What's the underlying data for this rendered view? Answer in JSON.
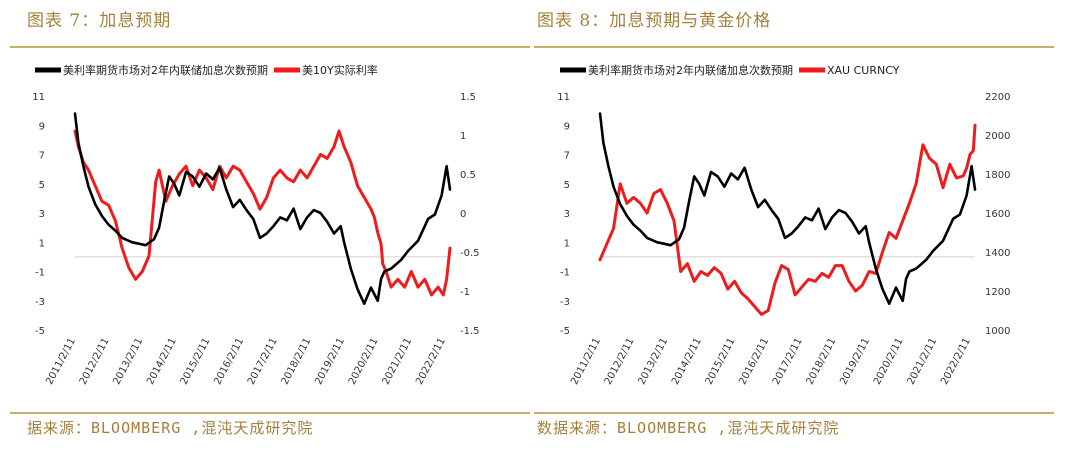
{
  "left": {
    "caption": "图表 7：加息预期",
    "source": "据来源：BLOOMBERG ,混沌天成研究院"
  },
  "right": {
    "caption": "图表 8：加息预期与黄金价格",
    "source": "数据来源：BLOOMBERG ,混沌天成研究院"
  },
  "colors": {
    "series1": "#000000",
    "series2": "#ee1c1c",
    "zero_line": "#d0d0d0"
  },
  "chart_data": [
    {
      "type": "line",
      "title": "",
      "x_tick_labels": [
        "2011/2/11",
        "2012/2/11",
        "2013/2/11",
        "2014/2/11",
        "2015/2/11",
        "2016/2/11",
        "2017/2/11",
        "2018/2/11",
        "2019/2/11",
        "2020/2/11",
        "2021/2/11",
        "2022/2/11"
      ],
      "y_left": {
        "ticks": [
          11,
          9,
          7,
          5,
          3,
          1,
          -1,
          -3,
          -5
        ],
        "range": [
          -5,
          11
        ]
      },
      "y_right": {
        "ticks": [
          "1.5",
          "1",
          "0.5",
          "0",
          "-0.5",
          "-1",
          "-1.5"
        ],
        "range": [
          -1.5,
          1.5
        ]
      },
      "zero_line_left_value": 0,
      "series": [
        {
          "name": "美利率期货市场对2年内联储加息次数预期",
          "axis": "left",
          "x": [
            2011.1,
            2011.2,
            2011.35,
            2011.5,
            2011.7,
            2011.9,
            2012.1,
            2012.3,
            2012.5,
            2012.8,
            2013.0,
            2013.2,
            2013.45,
            2013.6,
            2013.75,
            2013.9,
            2014.05,
            2014.2,
            2014.4,
            2014.6,
            2014.8,
            2015.0,
            2015.2,
            2015.4,
            2015.6,
            2015.8,
            2016.0,
            2016.2,
            2016.4,
            2016.6,
            2016.8,
            2017.0,
            2017.2,
            2017.4,
            2017.6,
            2017.8,
            2018.0,
            2018.2,
            2018.4,
            2018.6,
            2018.8,
            2019.0,
            2019.1,
            2019.3,
            2019.5,
            2019.7,
            2019.9,
            2020.1,
            2020.2,
            2020.3,
            2020.5,
            2020.8,
            2021.0,
            2021.3,
            2021.6,
            2021.8,
            2022.0,
            2022.15,
            2022.25
          ],
          "values": [
            9.8,
            7.8,
            6.2,
            4.8,
            3.6,
            2.8,
            2.2,
            1.8,
            1.3,
            1.0,
            0.9,
            0.8,
            1.2,
            2.0,
            3.8,
            5.5,
            5.0,
            4.2,
            5.8,
            5.5,
            4.8,
            5.7,
            5.3,
            6.1,
            4.6,
            3.4,
            3.9,
            3.2,
            2.6,
            1.3,
            1.6,
            2.1,
            2.7,
            2.5,
            3.3,
            1.9,
            2.7,
            3.2,
            3.0,
            2.4,
            1.6,
            2.1,
            1.0,
            -0.8,
            -2.2,
            -3.2,
            -2.1,
            -3.0,
            -1.5,
            -1.0,
            -0.8,
            -0.2,
            0.4,
            1.1,
            2.6,
            2.9,
            4.2,
            6.2,
            4.6
          ]
        },
        {
          "name": "美10Y实际利率",
          "axis": "right",
          "x": [
            2011.1,
            2011.2,
            2011.35,
            2011.5,
            2011.7,
            2011.9,
            2012.1,
            2012.3,
            2012.5,
            2012.7,
            2012.9,
            2013.1,
            2013.3,
            2013.5,
            2013.6,
            2013.8,
            2014.0,
            2014.2,
            2014.4,
            2014.6,
            2014.8,
            2015.0,
            2015.2,
            2015.4,
            2015.6,
            2015.8,
            2016.0,
            2016.2,
            2016.4,
            2016.6,
            2016.8,
            2017.0,
            2017.2,
            2017.4,
            2017.6,
            2017.8,
            2018.0,
            2018.2,
            2018.4,
            2018.6,
            2018.8,
            2018.95,
            2019.1,
            2019.3,
            2019.5,
            2019.7,
            2019.9,
            2020.0,
            2020.1,
            2020.2,
            2020.25,
            2020.35,
            2020.5,
            2020.7,
            2020.9,
            2021.1,
            2021.3,
            2021.5,
            2021.7,
            2021.9,
            2022.05,
            2022.15,
            2022.25
          ],
          "values": [
            1.05,
            0.85,
            0.65,
            0.55,
            0.35,
            0.15,
            0.1,
            -0.1,
            -0.45,
            -0.7,
            -0.85,
            -0.75,
            -0.55,
            0.4,
            0.55,
            0.15,
            0.35,
            0.5,
            0.6,
            0.35,
            0.55,
            0.45,
            0.3,
            0.6,
            0.45,
            0.6,
            0.55,
            0.4,
            0.25,
            0.05,
            0.2,
            0.45,
            0.55,
            0.45,
            0.4,
            0.55,
            0.45,
            0.6,
            0.75,
            0.7,
            0.85,
            1.05,
            0.85,
            0.65,
            0.35,
            0.2,
            0.05,
            -0.05,
            -0.25,
            -0.4,
            -0.65,
            -0.75,
            -0.95,
            -0.85,
            -0.95,
            -0.75,
            -0.95,
            -0.85,
            -1.05,
            -0.95,
            -1.05,
            -0.85,
            -0.45
          ]
        }
      ]
    },
    {
      "type": "line",
      "title": "",
      "x_tick_labels": [
        "2011/2/11",
        "2012/2/11",
        "2013/2/11",
        "2014/2/11",
        "2015/2/11",
        "2016/2/11",
        "2017/2/11",
        "2018/2/11",
        "2019/2/11",
        "2020/2/11",
        "2021/2/11",
        "2022/2/11"
      ],
      "y_left": {
        "ticks": [
          11,
          9,
          7,
          5,
          3,
          1,
          -1,
          -3,
          -5
        ],
        "range": [
          -5,
          11
        ]
      },
      "y_right": {
        "ticks": [
          "2200",
          "2000",
          "1800",
          "1600",
          "1400",
          "1200",
          "1000"
        ],
        "range": [
          1000,
          2200
        ]
      },
      "zero_line_left_value": 0,
      "series": [
        {
          "name": "美利率期货市场对2年内联储加息次数预期",
          "axis": "left",
          "x": [
            2011.1,
            2011.2,
            2011.35,
            2011.5,
            2011.7,
            2011.9,
            2012.1,
            2012.3,
            2012.5,
            2012.8,
            2013.0,
            2013.2,
            2013.45,
            2013.6,
            2013.75,
            2013.9,
            2014.05,
            2014.2,
            2014.4,
            2014.6,
            2014.8,
            2015.0,
            2015.2,
            2015.4,
            2015.6,
            2015.8,
            2016.0,
            2016.2,
            2016.4,
            2016.6,
            2016.8,
            2017.0,
            2017.2,
            2017.4,
            2017.6,
            2017.8,
            2018.0,
            2018.2,
            2018.4,
            2018.6,
            2018.8,
            2019.0,
            2019.1,
            2019.3,
            2019.5,
            2019.7,
            2019.9,
            2020.1,
            2020.2,
            2020.3,
            2020.5,
            2020.8,
            2021.0,
            2021.3,
            2021.6,
            2021.8,
            2022.0,
            2022.15,
            2022.25
          ],
          "values": [
            9.8,
            7.8,
            6.2,
            4.8,
            3.6,
            2.8,
            2.2,
            1.8,
            1.3,
            1.0,
            0.9,
            0.8,
            1.2,
            2.0,
            3.8,
            5.5,
            5.0,
            4.2,
            5.8,
            5.5,
            4.8,
            5.7,
            5.3,
            6.1,
            4.6,
            3.4,
            3.9,
            3.2,
            2.6,
            1.3,
            1.6,
            2.1,
            2.7,
            2.5,
            3.3,
            1.9,
            2.7,
            3.2,
            3.0,
            2.4,
            1.6,
            2.1,
            1.0,
            -0.8,
            -2.2,
            -3.2,
            -2.1,
            -3.0,
            -1.5,
            -1.0,
            -0.8,
            -0.2,
            0.4,
            1.1,
            2.6,
            2.9,
            4.2,
            6.2,
            4.6
          ]
        },
        {
          "name": "XAU CURNCY",
          "axis": "right",
          "x": [
            2011.1,
            2011.3,
            2011.5,
            2011.7,
            2011.9,
            2012.1,
            2012.3,
            2012.5,
            2012.7,
            2012.9,
            2013.1,
            2013.3,
            2013.5,
            2013.7,
            2013.9,
            2014.1,
            2014.3,
            2014.5,
            2014.7,
            2014.9,
            2015.1,
            2015.3,
            2015.5,
            2015.7,
            2015.9,
            2016.1,
            2016.3,
            2016.5,
            2016.7,
            2016.9,
            2017.1,
            2017.3,
            2017.5,
            2017.7,
            2017.9,
            2018.1,
            2018.3,
            2018.5,
            2018.7,
            2018.9,
            2019.1,
            2019.3,
            2019.5,
            2019.7,
            2019.9,
            2020.1,
            2020.3,
            2020.5,
            2020.6,
            2020.7,
            2020.9,
            2021.1,
            2021.3,
            2021.5,
            2021.7,
            2021.9,
            2022.0,
            2022.1,
            2022.2,
            2022.25
          ],
          "values": [
            1360,
            1440,
            1520,
            1750,
            1650,
            1680,
            1650,
            1600,
            1700,
            1720,
            1650,
            1560,
            1300,
            1340,
            1250,
            1300,
            1280,
            1320,
            1290,
            1210,
            1250,
            1190,
            1160,
            1120,
            1080,
            1100,
            1240,
            1330,
            1310,
            1180,
            1220,
            1260,
            1250,
            1290,
            1270,
            1330,
            1330,
            1250,
            1200,
            1230,
            1300,
            1290,
            1400,
            1500,
            1470,
            1560,
            1650,
            1750,
            1850,
            1950,
            1880,
            1850,
            1730,
            1850,
            1780,
            1790,
            1830,
            1900,
            1920,
            2050
          ]
        }
      ]
    }
  ]
}
